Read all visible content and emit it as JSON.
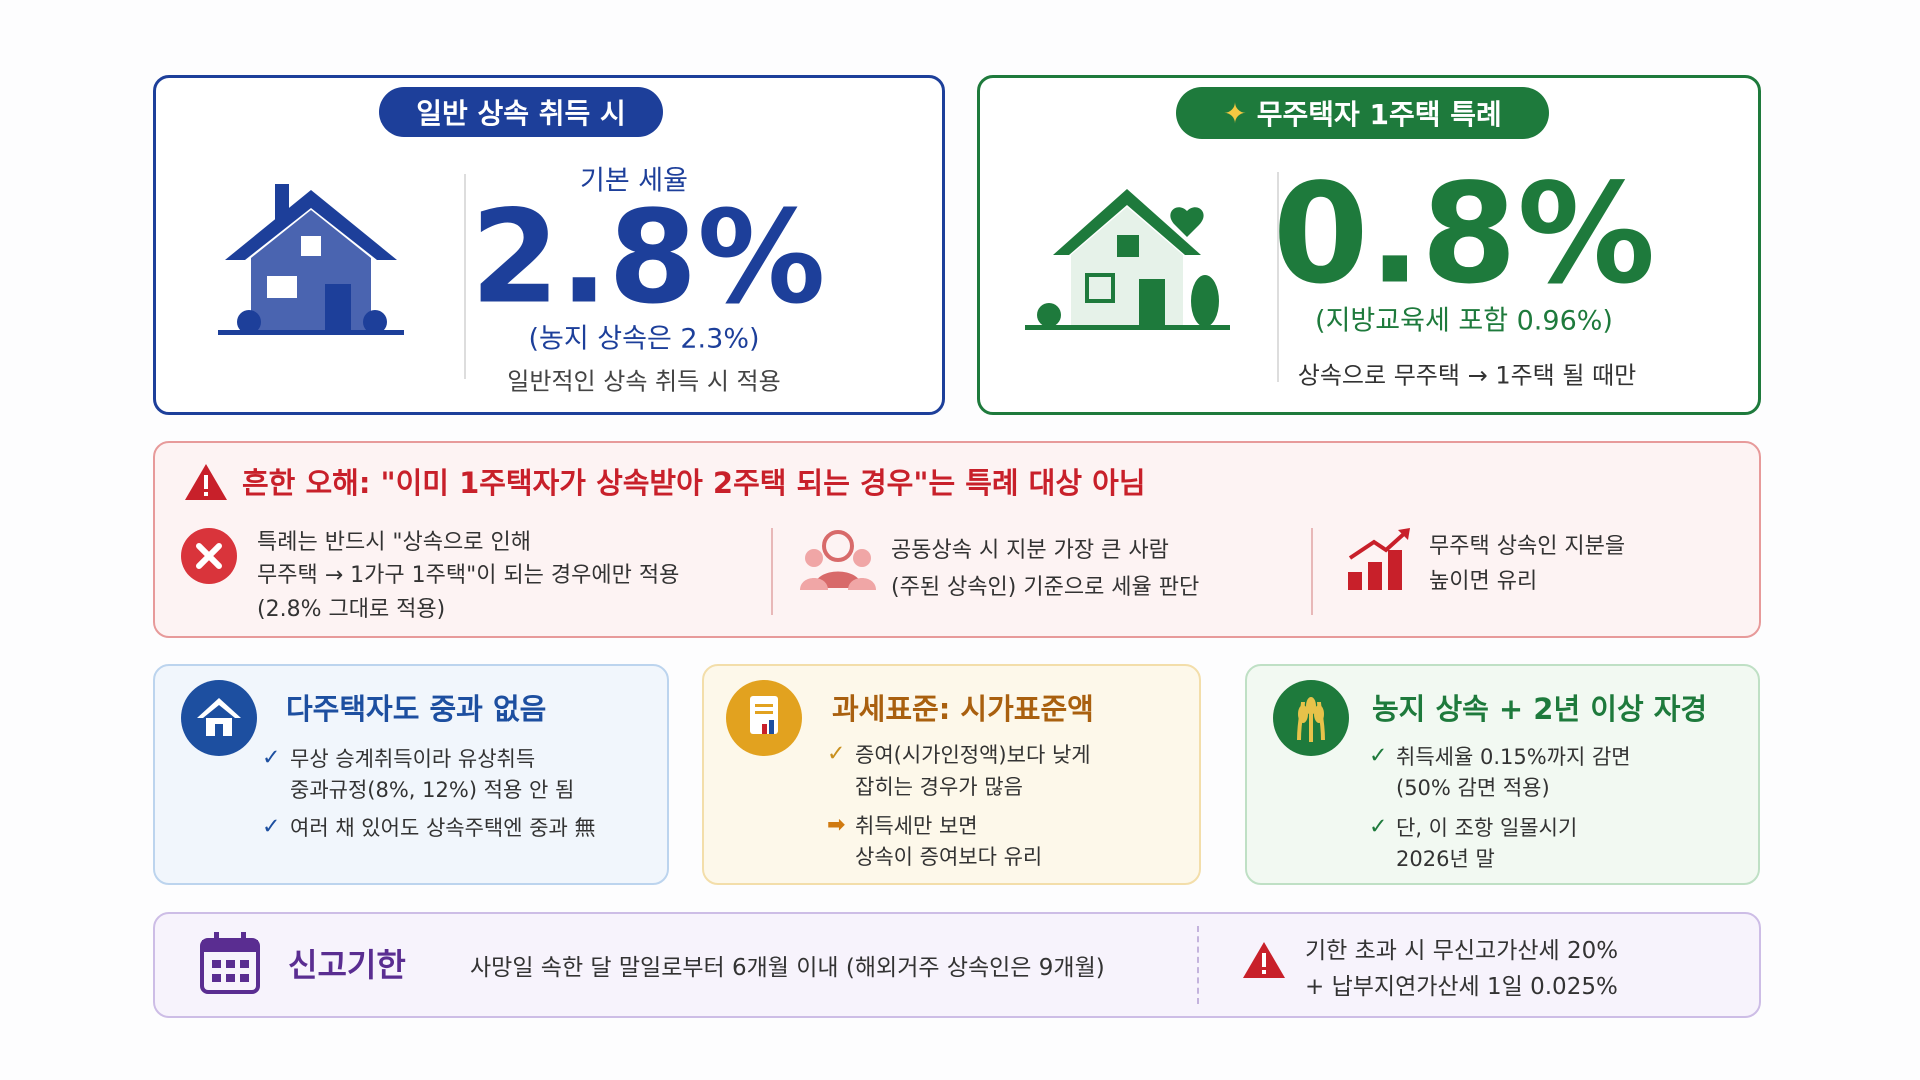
{
  "general": {
    "badge": "일반 상속 취득 시",
    "label": "기본 세율",
    "rate": "2.8%",
    "sub": "(농지 상속은 2.3%)",
    "note": "일반적인 상속 취득 시 적용"
  },
  "special": {
    "badge": "무주택자 1주택 특례",
    "rate": "0.8%",
    "sub": "(지방교육세 포함 0.96%)",
    "note": "상속으로 무주택 → 1주택 될 때만"
  },
  "warning": {
    "title": "흔한 오해: \"이미 1주택자가 상속받아 2주택 되는 경우\"는 특례 대상 아님",
    "items": [
      [
        "특례는 반드시 \"상속으로 인해",
        "무주택 → 1가구 1주택\"이 되는 경우에만 적용",
        "(2.8% 그대로 적용)"
      ],
      [
        "공동상속 시 지분 가장 큰 사람",
        "(주된 상속인) 기준으로 세율 판단"
      ],
      [
        "무주택 상속인 지분을",
        "높이면 유리"
      ]
    ]
  },
  "tips": [
    {
      "title": "다주택자도 중과 없음",
      "bullets": [
        [
          "무상 승계취득이라 유상취득",
          "중과규정(8%, 12%) 적용 안 됨"
        ],
        [
          "여러 채 있어도 상속주택엔 중과 無"
        ]
      ]
    },
    {
      "title": "과세표준: 시가표준액",
      "bullets": [
        [
          "증여(시가인정액)보다 낮게",
          "잡히는 경우가 많음"
        ],
        [
          "취득세만 보면",
          "상속이 증여보다 유리"
        ]
      ]
    },
    {
      "title": "농지 상속 + 2년 이상 자경",
      "bullets": [
        [
          "취득세율 0.15%까지 감면",
          "(50% 감면 적용)"
        ],
        [
          "단, 이 조항 일몰시기",
          "2026년 말"
        ]
      ]
    }
  ],
  "deadline": {
    "title": "신고기한",
    "text": "사망일 속한 달 말일로부터 6개월 이내 (해외거주 상속인은 9개월)",
    "penalty": [
      "기한 초과 시 무신고가산세 20%",
      "+ 납부지연가산세 1일 0.025%"
    ]
  }
}
